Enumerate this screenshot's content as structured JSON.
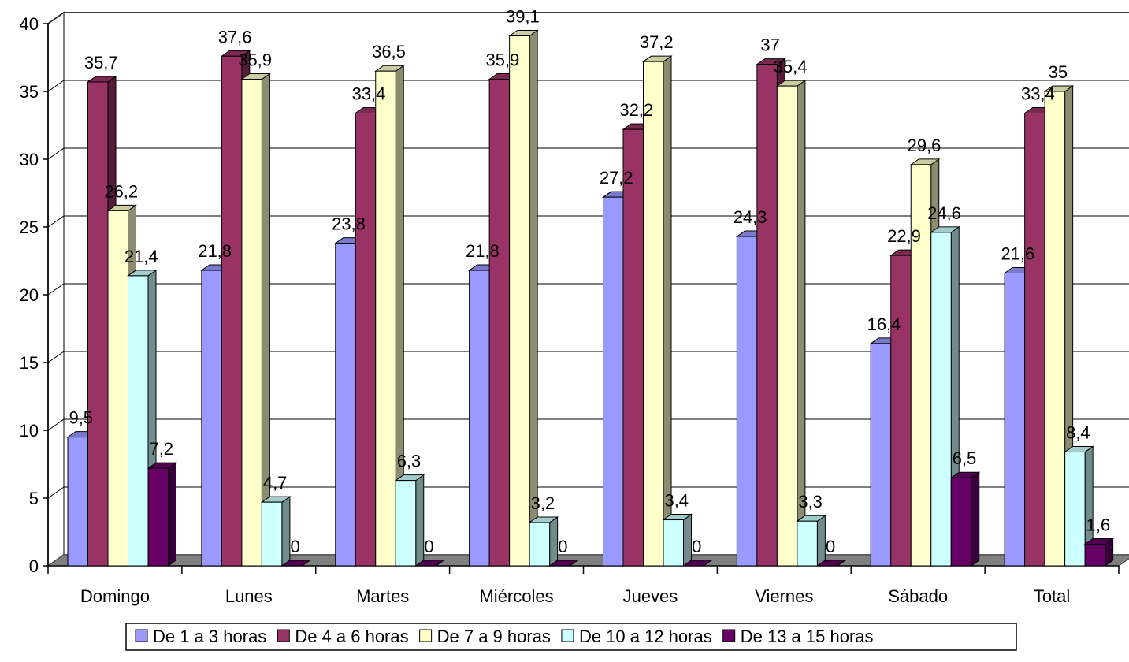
{
  "chart_data": {
    "type": "bar",
    "categories": [
      "Domingo",
      "Lunes",
      "Martes",
      "Miércoles",
      "Jueves",
      "Viernes",
      "Sábado",
      "Total"
    ],
    "series": [
      {
        "name": "De 1 a 3 horas",
        "color": "#9999ff",
        "values": [
          9.5,
          21.8,
          23.8,
          21.8,
          27.2,
          24.3,
          16.4,
          21.6
        ]
      },
      {
        "name": "De 4 a 6 horas",
        "color": "#993366",
        "values": [
          35.7,
          37.6,
          33.4,
          35.9,
          32.2,
          37,
          22.9,
          33.4
        ]
      },
      {
        "name": "De 7 a 9 horas",
        "color": "#ffffcc",
        "values": [
          26.2,
          35.9,
          36.5,
          39.1,
          37.2,
          35.4,
          29.6,
          35
        ]
      },
      {
        "name": "De 10 a 12 horas",
        "color": "#ccffff",
        "values": [
          21.4,
          4.7,
          6.3,
          3.2,
          3.4,
          3.3,
          24.6,
          8.4
        ]
      },
      {
        "name": "De 13 a 15 horas",
        "color": "#660066",
        "values": [
          7.2,
          0,
          0,
          0,
          0,
          0,
          6.5,
          1.6
        ]
      }
    ],
    "data_labels": [
      [
        "9,5",
        "35,7",
        "26,2",
        "21,4",
        "7,2"
      ],
      [
        "21,8",
        "37,6",
        "35,9",
        "4,7",
        "0"
      ],
      [
        "23,8",
        "33,4",
        "36,5",
        "6,3",
        "0"
      ],
      [
        "21,8",
        "35,9",
        "39,1",
        "3,2",
        "0"
      ],
      [
        "27,2",
        "32,2",
        "37,2",
        "3,4",
        "0"
      ],
      [
        "24,3",
        "37",
        "35,4",
        "3,3",
        "0"
      ],
      [
        "16,4",
        "22,9",
        "29,6",
        "24,6",
        "6,5"
      ],
      [
        "21,6",
        "33,4",
        "35",
        "8,4",
        "1,6"
      ]
    ],
    "y_ticks": [
      "0",
      "5",
      "10",
      "15",
      "20",
      "25",
      "30",
      "35",
      "40"
    ],
    "ylim": [
      0,
      40
    ],
    "title": "",
    "xlabel": "",
    "ylabel": "",
    "grid": true,
    "legend_position": "bottom",
    "three_d": true
  }
}
